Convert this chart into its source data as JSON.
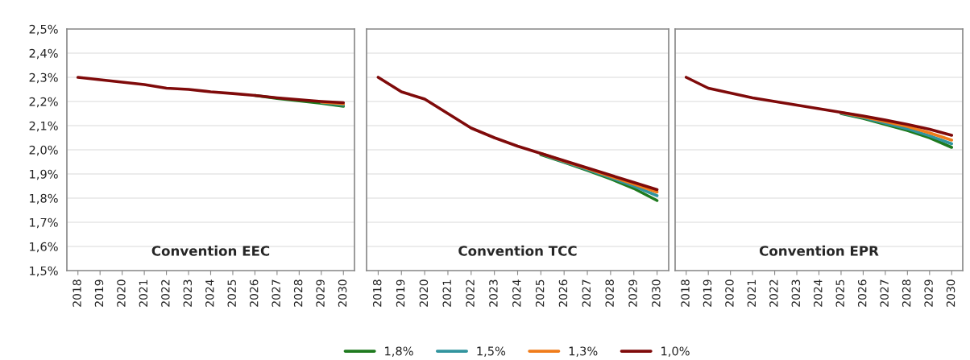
{
  "chart_data": [
    {
      "type": "line",
      "title": "Convention EEC",
      "categories": [
        "2018",
        "2019",
        "2020",
        "2021",
        "2022",
        "2023",
        "2024",
        "2025",
        "2026",
        "2027",
        "2028",
        "2029",
        "2030"
      ],
      "ylim": [
        1.5,
        2.5
      ],
      "yticks": [
        {
          "value": 1.5,
          "label": "1,5%"
        },
        {
          "value": 1.6,
          "label": "1,6%"
        },
        {
          "value": 1.7,
          "label": "1,7%"
        },
        {
          "value": 1.8,
          "label": "1,8%"
        },
        {
          "value": 1.9,
          "label": "1,9%"
        },
        {
          "value": 2.0,
          "label": "2,0%"
        },
        {
          "value": 2.1,
          "label": "2,1%"
        },
        {
          "value": 2.2,
          "label": "2,2%"
        },
        {
          "value": 2.3,
          "label": "2,3%"
        },
        {
          "value": 2.4,
          "label": "2,4%"
        },
        {
          "value": 2.5,
          "label": "2,5%"
        }
      ],
      "grid": "y",
      "series": [
        {
          "color": "#1e7a1e",
          "values": [
            null,
            null,
            null,
            null,
            null,
            null,
            null,
            null,
            2.225,
            2.213,
            2.203,
            2.193,
            2.18
          ]
        },
        {
          "color": "#31949e",
          "values": [
            null,
            null,
            null,
            null,
            null,
            null,
            null,
            null,
            null,
            null,
            null,
            2.196,
            2.185
          ]
        },
        {
          "color": "#f07c1a",
          "values": [
            null,
            null,
            null,
            null,
            null,
            null,
            null,
            null,
            null,
            null,
            null,
            2.198,
            2.19
          ]
        },
        {
          "color": "#7f0a0a",
          "values": [
            2.3,
            2.29,
            2.28,
            2.27,
            2.255,
            2.25,
            2.24,
            2.233,
            2.225,
            2.215,
            2.207,
            2.2,
            2.195
          ]
        }
      ]
    },
    {
      "type": "line",
      "title": "Convention TCC",
      "categories": [
        "2018",
        "2019",
        "2020",
        "2021",
        "2022",
        "2023",
        "2024",
        "2025",
        "2026",
        "2027",
        "2028",
        "2029",
        "2030"
      ],
      "ylim": [
        1.5,
        2.5
      ],
      "yticks": [
        {
          "value": 1.5,
          "label": null
        },
        {
          "value": 1.6,
          "label": null
        },
        {
          "value": 1.7,
          "label": null
        },
        {
          "value": 1.8,
          "label": null
        },
        {
          "value": 1.9,
          "label": null
        },
        {
          "value": 2.0,
          "label": null
        },
        {
          "value": 2.1,
          "label": null
        },
        {
          "value": 2.2,
          "label": null
        },
        {
          "value": 2.3,
          "label": null
        },
        {
          "value": 2.4,
          "label": null
        },
        {
          "value": 2.5,
          "label": null
        }
      ],
      "grid": "y",
      "tick_labels": "x",
      "legend": "bottom",
      "series": [
        {
          "name": "1,8%",
          "color": "#1e7a1e",
          "values": [
            null,
            null,
            null,
            null,
            null,
            null,
            null,
            1.98,
            1.948,
            1.915,
            1.88,
            1.84,
            1.79
          ]
        },
        {
          "name": "1,5%",
          "color": "#31949e",
          "values": [
            null,
            null,
            null,
            null,
            null,
            null,
            null,
            1.983,
            1.95,
            1.918,
            1.885,
            1.85,
            1.81
          ]
        },
        {
          "name": "1,3%",
          "color": "#f07c1a",
          "values": [
            null,
            null,
            null,
            null,
            null,
            null,
            null,
            1.985,
            1.953,
            1.922,
            1.89,
            1.858,
            1.825
          ]
        },
        {
          "name": "1,0%",
          "color": "#7f0a0a",
          "values": [
            2.3,
            2.24,
            2.21,
            2.15,
            2.09,
            2.05,
            2.015,
            1.985,
            1.955,
            1.925,
            1.895,
            1.865,
            1.835
          ]
        }
      ]
    },
    {
      "type": "line",
      "title": "Convention EPR",
      "categories": [
        "2018",
        "2019",
        "2020",
        "2021",
        "2022",
        "2023",
        "2024",
        "2025",
        "2026",
        "2027",
        "2028",
        "2029",
        "2030"
      ],
      "ylim": [
        1.5,
        2.5
      ],
      "yticks": [
        {
          "value": 1.5,
          "label": null
        },
        {
          "value": 1.6,
          "label": null
        },
        {
          "value": 1.7,
          "label": null
        },
        {
          "value": 1.8,
          "label": null
        },
        {
          "value": 1.9,
          "label": null
        },
        {
          "value": 2.0,
          "label": null
        },
        {
          "value": 2.1,
          "label": null
        },
        {
          "value": 2.2,
          "label": null
        },
        {
          "value": 2.3,
          "label": null
        },
        {
          "value": 2.4,
          "label": null
        },
        {
          "value": 2.5,
          "label": null
        }
      ],
      "grid": "y",
      "tick_labels": "x",
      "series": [
        {
          "color": "#1e7a1e",
          "values": [
            null,
            null,
            null,
            null,
            null,
            null,
            null,
            2.15,
            2.13,
            2.105,
            2.08,
            2.05,
            2.01
          ]
        },
        {
          "color": "#31949e",
          "values": [
            null,
            null,
            null,
            null,
            null,
            null,
            null,
            2.152,
            2.133,
            2.11,
            2.087,
            2.058,
            2.025
          ]
        },
        {
          "color": "#f07c1a",
          "values": [
            null,
            null,
            null,
            null,
            null,
            null,
            null,
            2.154,
            2.137,
            2.117,
            2.097,
            2.07,
            2.04
          ]
        },
        {
          "color": "#7f0a0a",
          "values": [
            2.3,
            2.255,
            2.235,
            2.215,
            2.2,
            2.185,
            2.17,
            2.155,
            2.14,
            2.123,
            2.105,
            2.085,
            2.06
          ]
        }
      ]
    }
  ]
}
